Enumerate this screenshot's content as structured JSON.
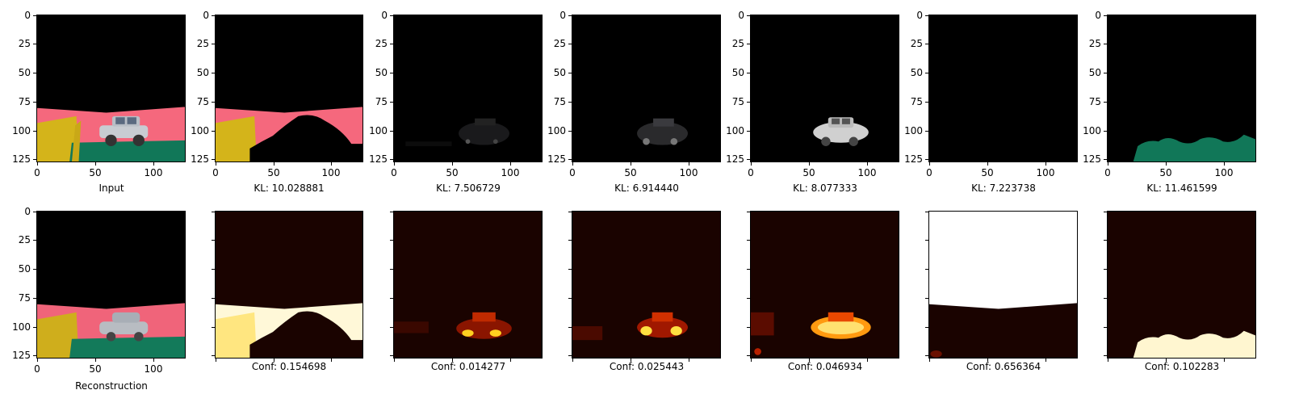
{
  "axis": {
    "x_ticks": [
      "0",
      "50",
      "100"
    ],
    "y_ticks": [
      "0",
      "25",
      "50",
      "75",
      "100",
      "125"
    ]
  },
  "row1": {
    "captions": [
      "Input",
      "KL: 10.028881",
      "KL: 7.506729",
      "KL: 6.914440",
      "KL: 8.077333",
      "KL: 7.223738",
      "KL: 11.461599"
    ]
  },
  "row2": {
    "captions": [
      "Reconstruction",
      "Conf: 0.154698",
      "Conf: 0.014277",
      "Conf: 0.025443",
      "Conf: 0.046934",
      "Conf: 0.656364",
      "Conf: 0.102283"
    ]
  },
  "colors": {
    "sky": "#000000",
    "wall": "#f5687d",
    "pillar": "#d4b41a",
    "ground": "#117758",
    "car": "#c8ccd2",
    "heat_hot": "#fffbe0",
    "heat_mid": "#f06010",
    "heat_low": "#1a0300"
  }
}
